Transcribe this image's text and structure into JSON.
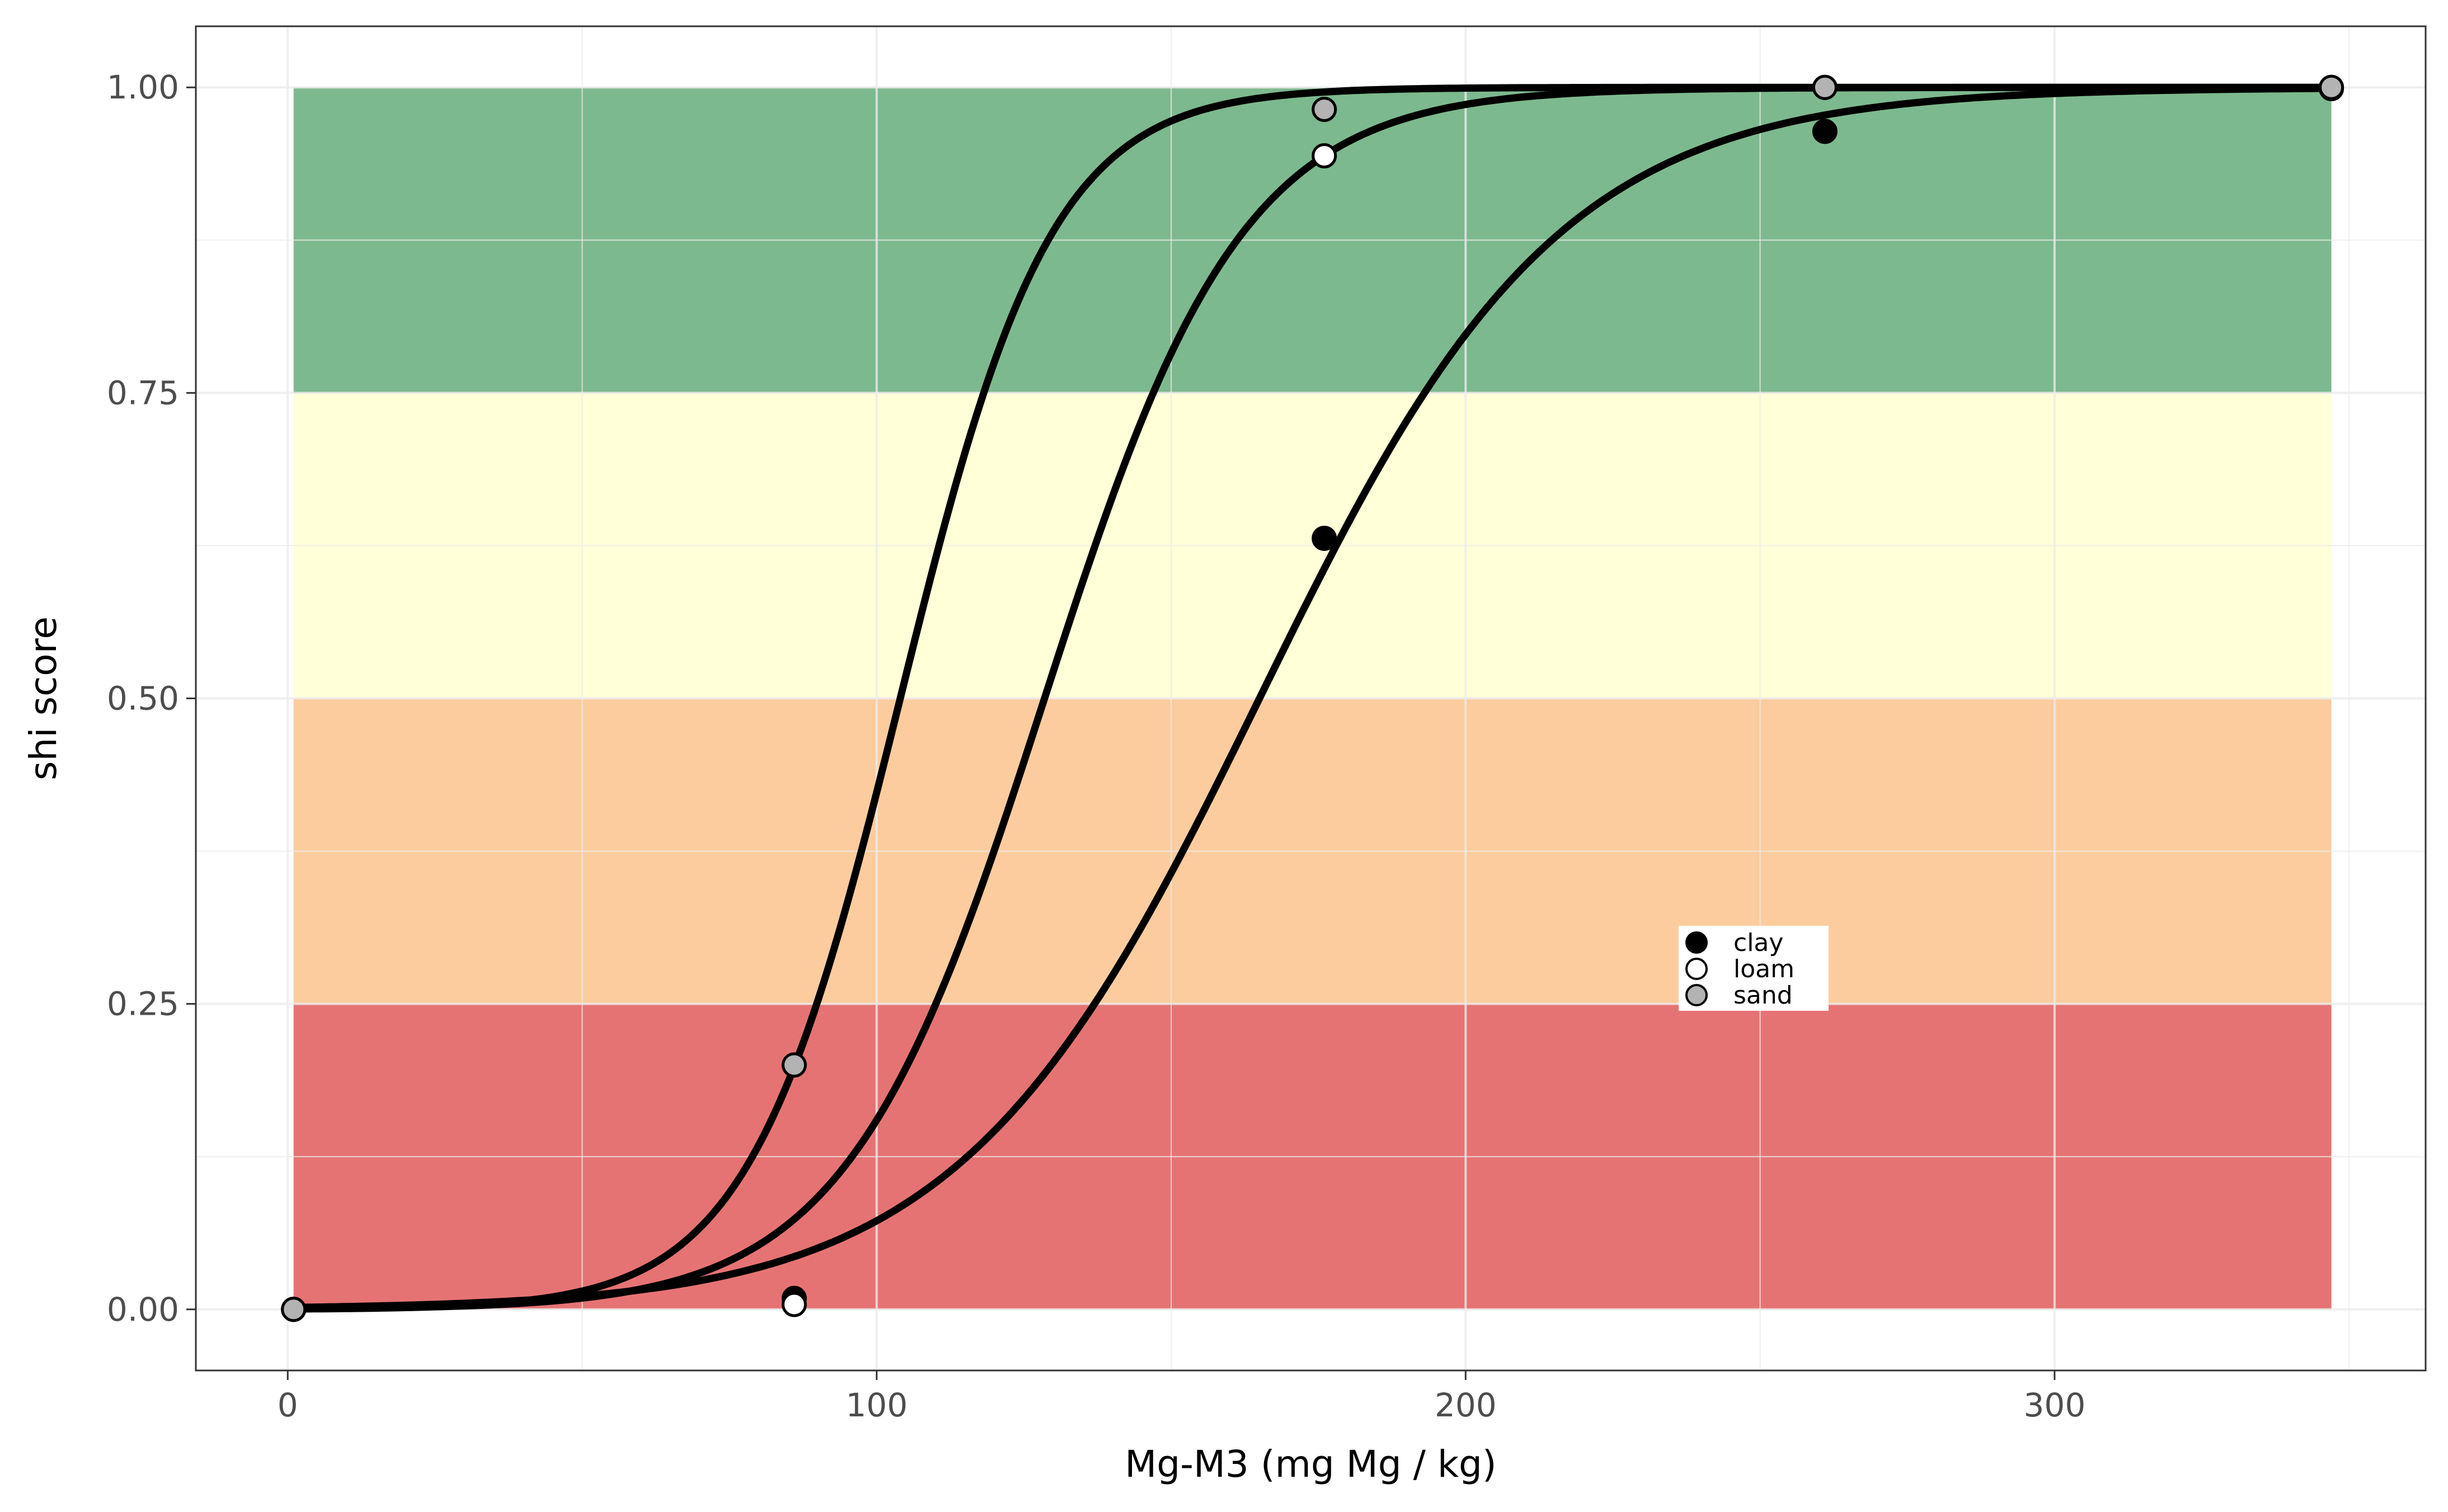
{
  "chart_data": {
    "type": "line",
    "title": "",
    "xlabel": "Mg-M3 (mg Mg / kg)",
    "ylabel": "shi score",
    "xlim": [
      -15.6,
      363
    ],
    "ylim": [
      -0.05,
      1.05
    ],
    "x_ticks": [
      0,
      100,
      200,
      300
    ],
    "x_tick_labels": [
      "0",
      "100",
      "200",
      "300"
    ],
    "y_ticks": [
      0.0,
      0.25,
      0.5,
      0.75,
      1.0
    ],
    "y_tick_labels": [
      "0.00",
      "0.25",
      "0.50",
      "0.75",
      "1.00"
    ],
    "grid": true,
    "bands": [
      {
        "ymin": 0.0,
        "ymax": 0.25,
        "color": "#e67373"
      },
      {
        "ymin": 0.25,
        "ymax": 0.5,
        "color": "#fccc9e"
      },
      {
        "ymin": 0.5,
        "ymax": 0.75,
        "color": "#ffffd8"
      },
      {
        "ymin": 0.75,
        "ymax": 1.0,
        "color": "#7db98e"
      }
    ],
    "band_x_range": [
      1,
      347
    ],
    "curve_x_range": [
      1,
      347
    ],
    "series": [
      {
        "name": "clay",
        "marker_color": "#000000",
        "x_mid": 165,
        "scale": 25.5,
        "points": [
          {
            "x": 1,
            "y": 0.0
          },
          {
            "x": 86,
            "y": 0.009
          },
          {
            "x": 176,
            "y": 0.631
          },
          {
            "x": 261,
            "y": 0.964
          },
          {
            "x": 347,
            "y": 0.999
          }
        ]
      },
      {
        "name": "loam",
        "marker_color": "#ffffff",
        "x_mid": 128.5,
        "scale": 16.8,
        "points": [
          {
            "x": 1,
            "y": 0.0
          },
          {
            "x": 86,
            "y": 0.004
          },
          {
            "x": 176,
            "y": 0.944
          },
          {
            "x": 261,
            "y": 1.0
          },
          {
            "x": 347,
            "y": 1.0
          }
        ]
      },
      {
        "name": "sand",
        "marker_color": "#b3b3b3",
        "x_mid": 104,
        "scale": 12.9,
        "points": [
          {
            "x": 1,
            "y": 0.0
          },
          {
            "x": 86,
            "y": 0.2
          },
          {
            "x": 176,
            "y": 0.982
          },
          {
            "x": 261,
            "y": 1.0
          },
          {
            "x": 347,
            "y": 1.0
          }
        ]
      }
    ],
    "legend": {
      "position": "inside-right",
      "items": [
        {
          "label": "clay",
          "color": "#000000"
        },
        {
          "label": "loam",
          "color": "#ffffff"
        },
        {
          "label": "sand",
          "color": "#b3b3b3"
        }
      ]
    }
  }
}
